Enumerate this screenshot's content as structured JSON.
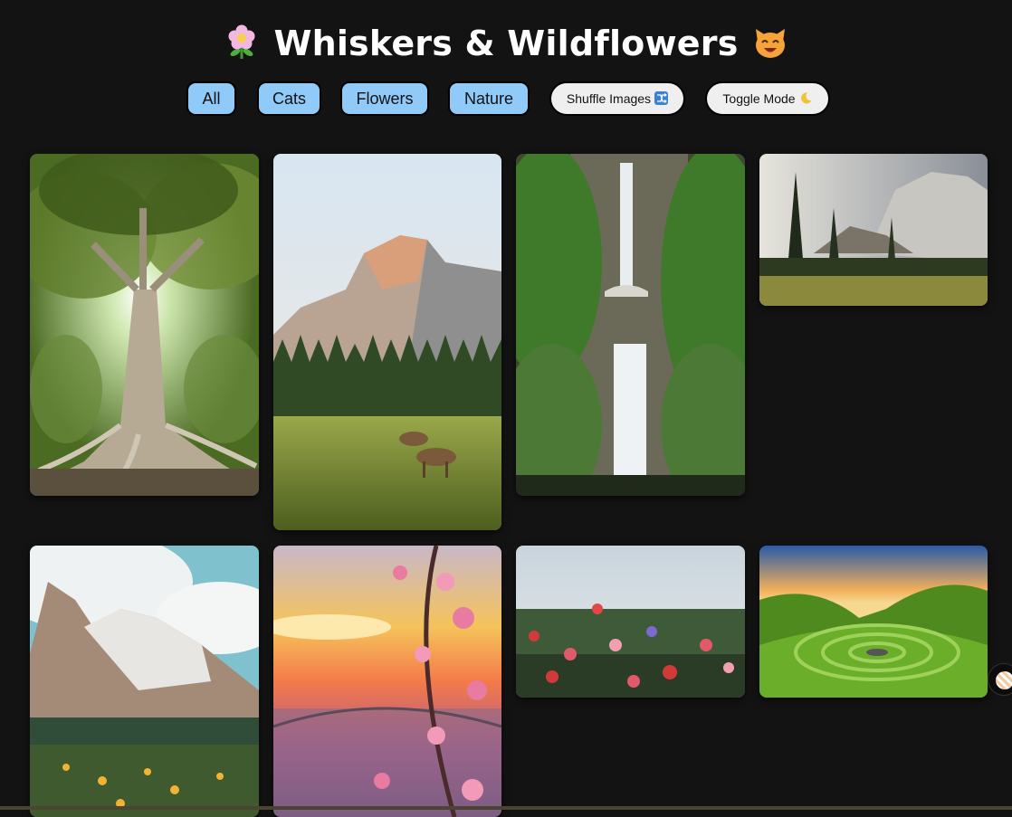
{
  "header": {
    "title_text": "Whiskers & Wildflowers",
    "leading_emoji": "flower-icon",
    "trailing_emoji": "cat-icon"
  },
  "filters": [
    {
      "label": "All"
    },
    {
      "label": "Cats"
    },
    {
      "label": "Flowers"
    },
    {
      "label": "Nature"
    }
  ],
  "actions": {
    "shuffle_label": "Shuffle Images",
    "shuffle_icon": "shuffle-icon",
    "toggle_label": "Toggle Mode",
    "toggle_icon": "moon-icon"
  },
  "gallery": {
    "images": [
      {
        "subject": "banyan-tree"
      },
      {
        "subject": "half-dome-deer-meadow"
      },
      {
        "subject": "multnomah-falls"
      },
      {
        "subject": "el-capitan-meadow"
      },
      {
        "subject": "dolomites-wildflowers"
      },
      {
        "subject": "cherry-blossom-sunset"
      },
      {
        "subject": "wildflower-field"
      },
      {
        "subject": "green-hills-spiral"
      }
    ]
  },
  "colors": {
    "background": "#131313",
    "filter_button": "#90caf9",
    "action_button": "#efefef"
  }
}
